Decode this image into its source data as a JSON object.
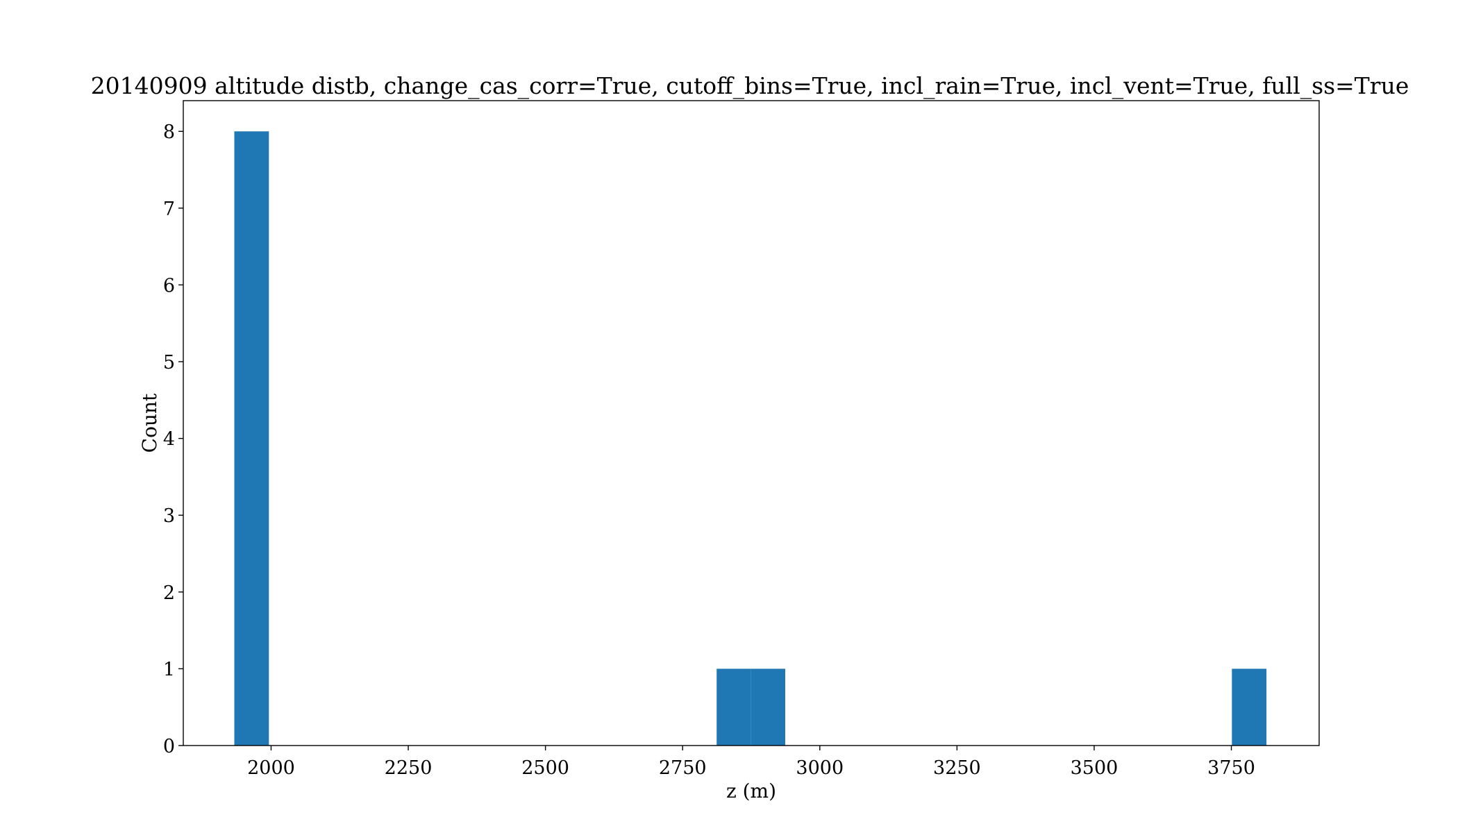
{
  "chart_data": {
    "type": "bar",
    "title": "20140909 altitude distb, change_cas_corr=True, cutoff_bins=True, incl_rain=True, incl_vent=True, full_ss=True",
    "xlabel": "z (m)",
    "ylabel": "Count",
    "xlim": [
      1840,
      3910
    ],
    "ylim": [
      0,
      8.4
    ],
    "xticks": [
      {
        "value": 2000,
        "label": "2000"
      },
      {
        "value": 2250,
        "label": "2250"
      },
      {
        "value": 2500,
        "label": "2500"
      },
      {
        "value": 2750,
        "label": "2750"
      },
      {
        "value": 3000,
        "label": "3000"
      },
      {
        "value": 3250,
        "label": "3250"
      },
      {
        "value": 3500,
        "label": "3500"
      },
      {
        "value": 3750,
        "label": "3750"
      }
    ],
    "yticks": [
      {
        "value": 0,
        "label": "0"
      },
      {
        "value": 1,
        "label": "1"
      },
      {
        "value": 2,
        "label": "2"
      },
      {
        "value": 3,
        "label": "3"
      },
      {
        "value": 4,
        "label": "4"
      },
      {
        "value": 5,
        "label": "5"
      },
      {
        "value": 6,
        "label": "6"
      },
      {
        "value": 7,
        "label": "7"
      },
      {
        "value": 8,
        "label": "8"
      }
    ],
    "bins": [
      {
        "x0": 1933,
        "x1": 1996,
        "count": 8
      },
      {
        "x0": 2812,
        "x1": 2874,
        "count": 1
      },
      {
        "x0": 2874,
        "x1": 2937,
        "count": 1
      },
      {
        "x0": 3751,
        "x1": 3814,
        "count": 1
      }
    ],
    "bar_color": "#1f77b4",
    "grid": false,
    "legend": "none"
  }
}
